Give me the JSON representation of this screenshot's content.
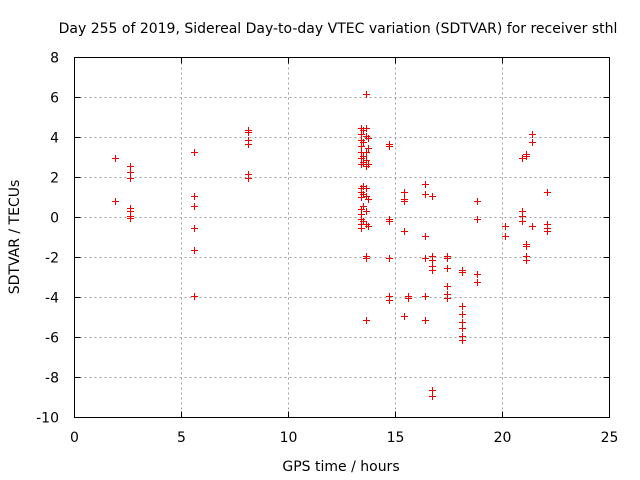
{
  "chart_data": {
    "type": "scatter",
    "title": "Day 255 of 2019, Sidereal Day-to-day VTEC variation (SDTVAR) for receiver sthl",
    "xlabel": "GPS time / hours",
    "ylabel": "SDTVAR / TECUs",
    "xlim": [
      0,
      25
    ],
    "ylim": [
      -10,
      8
    ],
    "xticks": [
      0,
      5,
      10,
      15,
      20,
      25
    ],
    "yticks": [
      -10,
      -8,
      -6,
      -4,
      -2,
      0,
      2,
      4,
      6,
      8
    ],
    "grid": true,
    "marker_color": "#ee0000",
    "series": [
      {
        "name": "SDTVAR",
        "points": [
          [
            1.9,
            3.0
          ],
          [
            1.9,
            0.8
          ],
          [
            2.6,
            2.6
          ],
          [
            2.6,
            2.3
          ],
          [
            2.6,
            2.0
          ],
          [
            2.6,
            0.5
          ],
          [
            2.6,
            0.3
          ],
          [
            2.6,
            0.1
          ],
          [
            2.6,
            0.0
          ],
          [
            5.6,
            3.3
          ],
          [
            5.6,
            1.1
          ],
          [
            5.6,
            0.6
          ],
          [
            5.6,
            -0.5
          ],
          [
            5.6,
            -1.6
          ],
          [
            5.6,
            -3.9
          ],
          [
            8.1,
            4.4
          ],
          [
            8.1,
            4.3
          ],
          [
            8.1,
            3.9
          ],
          [
            8.1,
            3.7
          ],
          [
            8.1,
            2.2
          ],
          [
            8.1,
            2.0
          ],
          [
            13.4,
            4.5
          ],
          [
            13.4,
            4.2
          ],
          [
            13.4,
            3.9
          ],
          [
            13.4,
            3.6
          ],
          [
            13.4,
            3.3
          ],
          [
            13.4,
            3.0
          ],
          [
            13.4,
            2.7
          ],
          [
            13.4,
            1.5
          ],
          [
            13.4,
            1.3
          ],
          [
            13.4,
            1.0
          ],
          [
            13.4,
            0.4
          ],
          [
            13.4,
            0.2
          ],
          [
            13.4,
            -0.1
          ],
          [
            13.4,
            -0.3
          ],
          [
            13.4,
            -0.5
          ],
          [
            13.5,
            4.4
          ],
          [
            13.5,
            3.8
          ],
          [
            13.5,
            3.1
          ],
          [
            13.5,
            2.8
          ],
          [
            13.5,
            1.6
          ],
          [
            13.5,
            1.2
          ],
          [
            13.5,
            0.6
          ],
          [
            13.5,
            -0.2
          ],
          [
            13.6,
            6.2
          ],
          [
            13.6,
            4.5
          ],
          [
            13.6,
            4.1
          ],
          [
            13.6,
            3.3
          ],
          [
            13.6,
            2.9
          ],
          [
            13.6,
            2.6
          ],
          [
            13.6,
            1.5
          ],
          [
            13.6,
            1.1
          ],
          [
            13.6,
            0.3
          ],
          [
            13.6,
            -0.3
          ],
          [
            13.6,
            -1.9
          ],
          [
            13.6,
            -2.0
          ],
          [
            13.6,
            -5.1
          ],
          [
            13.7,
            4.0
          ],
          [
            13.7,
            3.5
          ],
          [
            13.7,
            2.7
          ],
          [
            13.7,
            0.9
          ],
          [
            13.7,
            -0.4
          ],
          [
            14.7,
            3.7
          ],
          [
            14.7,
            3.6
          ],
          [
            14.7,
            -0.1
          ],
          [
            14.7,
            -0.2
          ],
          [
            14.7,
            -2.0
          ],
          [
            14.7,
            -3.9
          ],
          [
            14.7,
            -4.1
          ],
          [
            15.4,
            1.3
          ],
          [
            15.4,
            0.9
          ],
          [
            15.4,
            0.8
          ],
          [
            15.4,
            -0.7
          ],
          [
            15.4,
            -4.9
          ],
          [
            15.6,
            -3.9
          ],
          [
            15.6,
            -4.0
          ],
          [
            16.4,
            1.7
          ],
          [
            16.4,
            1.2
          ],
          [
            16.4,
            -0.9
          ],
          [
            16.4,
            -2.0
          ],
          [
            16.4,
            -3.9
          ],
          [
            16.4,
            -5.1
          ],
          [
            16.7,
            1.1
          ],
          [
            16.7,
            -1.9
          ],
          [
            16.7,
            -2.1
          ],
          [
            16.7,
            -2.4
          ],
          [
            16.7,
            -2.6
          ],
          [
            16.7,
            -8.6
          ],
          [
            16.7,
            -8.9
          ],
          [
            17.4,
            -1.9
          ],
          [
            17.4,
            -2.0
          ],
          [
            17.4,
            -2.5
          ],
          [
            17.4,
            -3.4
          ],
          [
            17.4,
            -3.8
          ],
          [
            17.4,
            -4.0
          ],
          [
            18.1,
            -2.6
          ],
          [
            18.1,
            -2.7
          ],
          [
            18.1,
            -4.4
          ],
          [
            18.1,
            -4.8
          ],
          [
            18.1,
            -5.2
          ],
          [
            18.1,
            -5.5
          ],
          [
            18.1,
            -5.9
          ],
          [
            18.1,
            -6.1
          ],
          [
            18.8,
            0.8
          ],
          [
            18.8,
            -0.1
          ],
          [
            18.8,
            -2.8
          ],
          [
            18.8,
            -3.2
          ],
          [
            20.1,
            -0.4
          ],
          [
            20.1,
            -0.9
          ],
          [
            20.9,
            3.0
          ],
          [
            20.9,
            0.3
          ],
          [
            20.9,
            0.1
          ],
          [
            20.9,
            -0.2
          ],
          [
            21.1,
            3.2
          ],
          [
            21.1,
            3.1
          ],
          [
            21.1,
            -1.3
          ],
          [
            21.1,
            -1.4
          ],
          [
            21.1,
            -1.9
          ],
          [
            21.1,
            -2.1
          ],
          [
            21.4,
            4.2
          ],
          [
            21.4,
            3.8
          ],
          [
            21.4,
            -0.4
          ],
          [
            22.1,
            1.3
          ],
          [
            22.1,
            -0.3
          ],
          [
            22.1,
            -0.5
          ],
          [
            22.1,
            -0.7
          ]
        ]
      }
    ]
  }
}
